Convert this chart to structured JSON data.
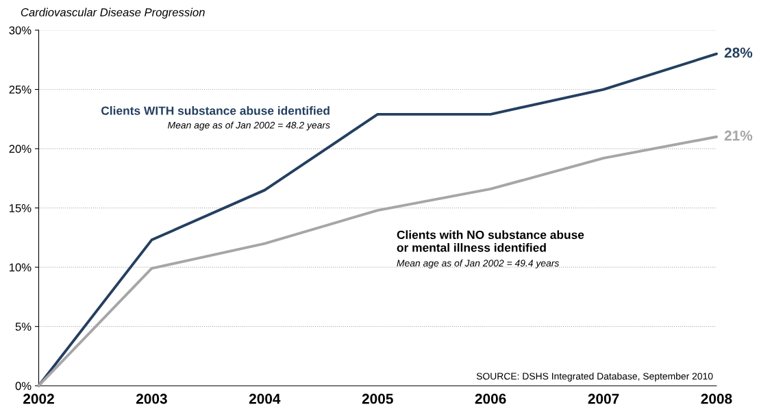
{
  "chart_data": {
    "type": "line",
    "title": "Cardiovascular Disease Progression",
    "categories": [
      "2002",
      "2003",
      "2004",
      "2005",
      "2006",
      "2007",
      "2008"
    ],
    "series": [
      {
        "name": "Clients WITH substance abuse identified",
        "color": "#243f60",
        "values": [
          0,
          12.3,
          16.5,
          22.9,
          22.9,
          25.0,
          28
        ],
        "value_labels": [
          null,
          null,
          null,
          null,
          null,
          null,
          "28%"
        ]
      },
      {
        "name": "Clients with NO substance abuse\nor mental illness identified",
        "color": "#a6a6a6",
        "values": [
          0,
          9.9,
          12.0,
          14.8,
          16.6,
          19.2,
          21
        ],
        "value_labels": [
          null,
          null,
          null,
          null,
          null,
          null,
          "21%"
        ]
      }
    ],
    "ylim": [
      0,
      30
    ],
    "yticks": [
      {
        "value": 0,
        "label": "0%"
      },
      {
        "value": 5,
        "label": "5%"
      },
      {
        "value": 10,
        "label": "10%"
      },
      {
        "value": 15,
        "label": "15%"
      },
      {
        "value": 20,
        "label": "20%"
      },
      {
        "value": 25,
        "label": "25%"
      },
      {
        "value": 30,
        "label": "30%"
      }
    ],
    "annotations": [
      "Mean age as of Jan 2002 = 48.2 years",
      "Mean age as of Jan 2002 = 49.4 years",
      "SOURCE: DSHS Integrated Database, September 2010"
    ],
    "grid": "y",
    "legend": false,
    "marker": "none",
    "line_style": "solid"
  }
}
